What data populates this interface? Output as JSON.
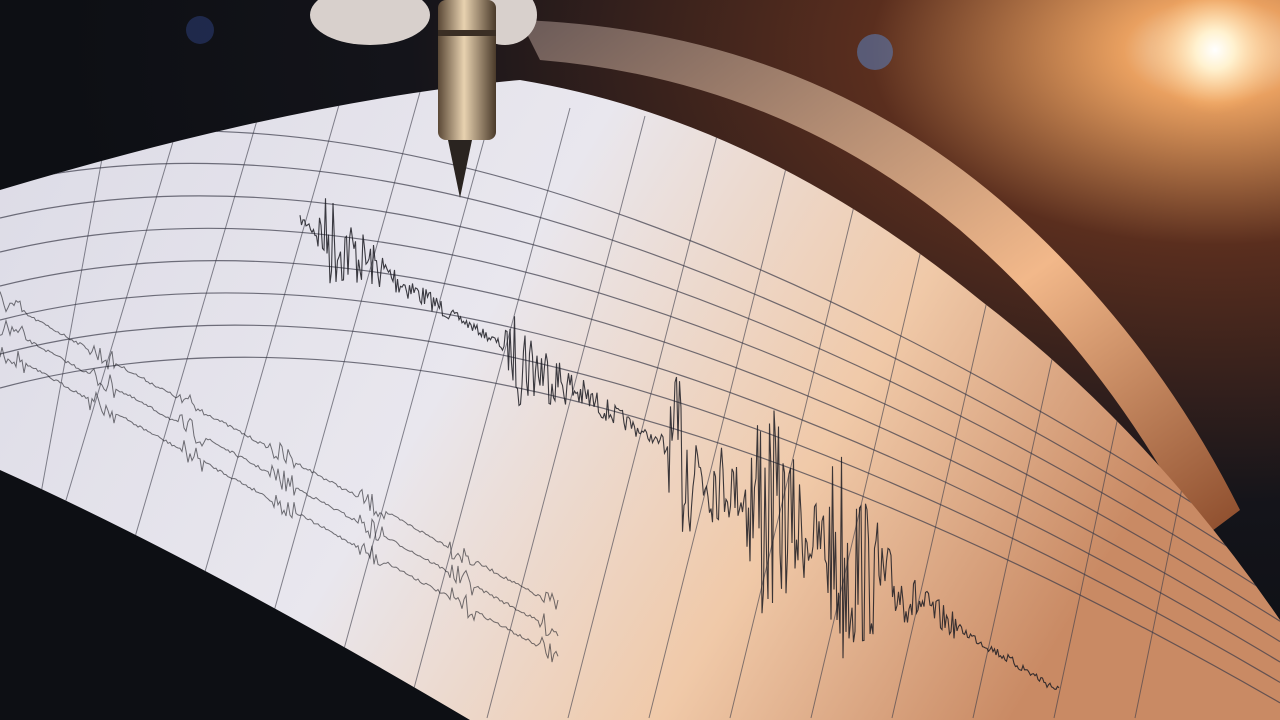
{
  "scene": {
    "subject": "seismograph",
    "colors": {
      "background_dark": "#0d0f14",
      "background_warm": "#5a2e1e",
      "paper_light": "#e9e7ee",
      "paper_warm": "#f0c9a8",
      "grid_line": "#3a3a48",
      "trace_ink": "#1b1b22",
      "pen_metal": "#b89a78",
      "light_glow": "#fff6e0"
    },
    "icons": [
      "seismograph-pen-icon",
      "light-glow-icon"
    ]
  }
}
